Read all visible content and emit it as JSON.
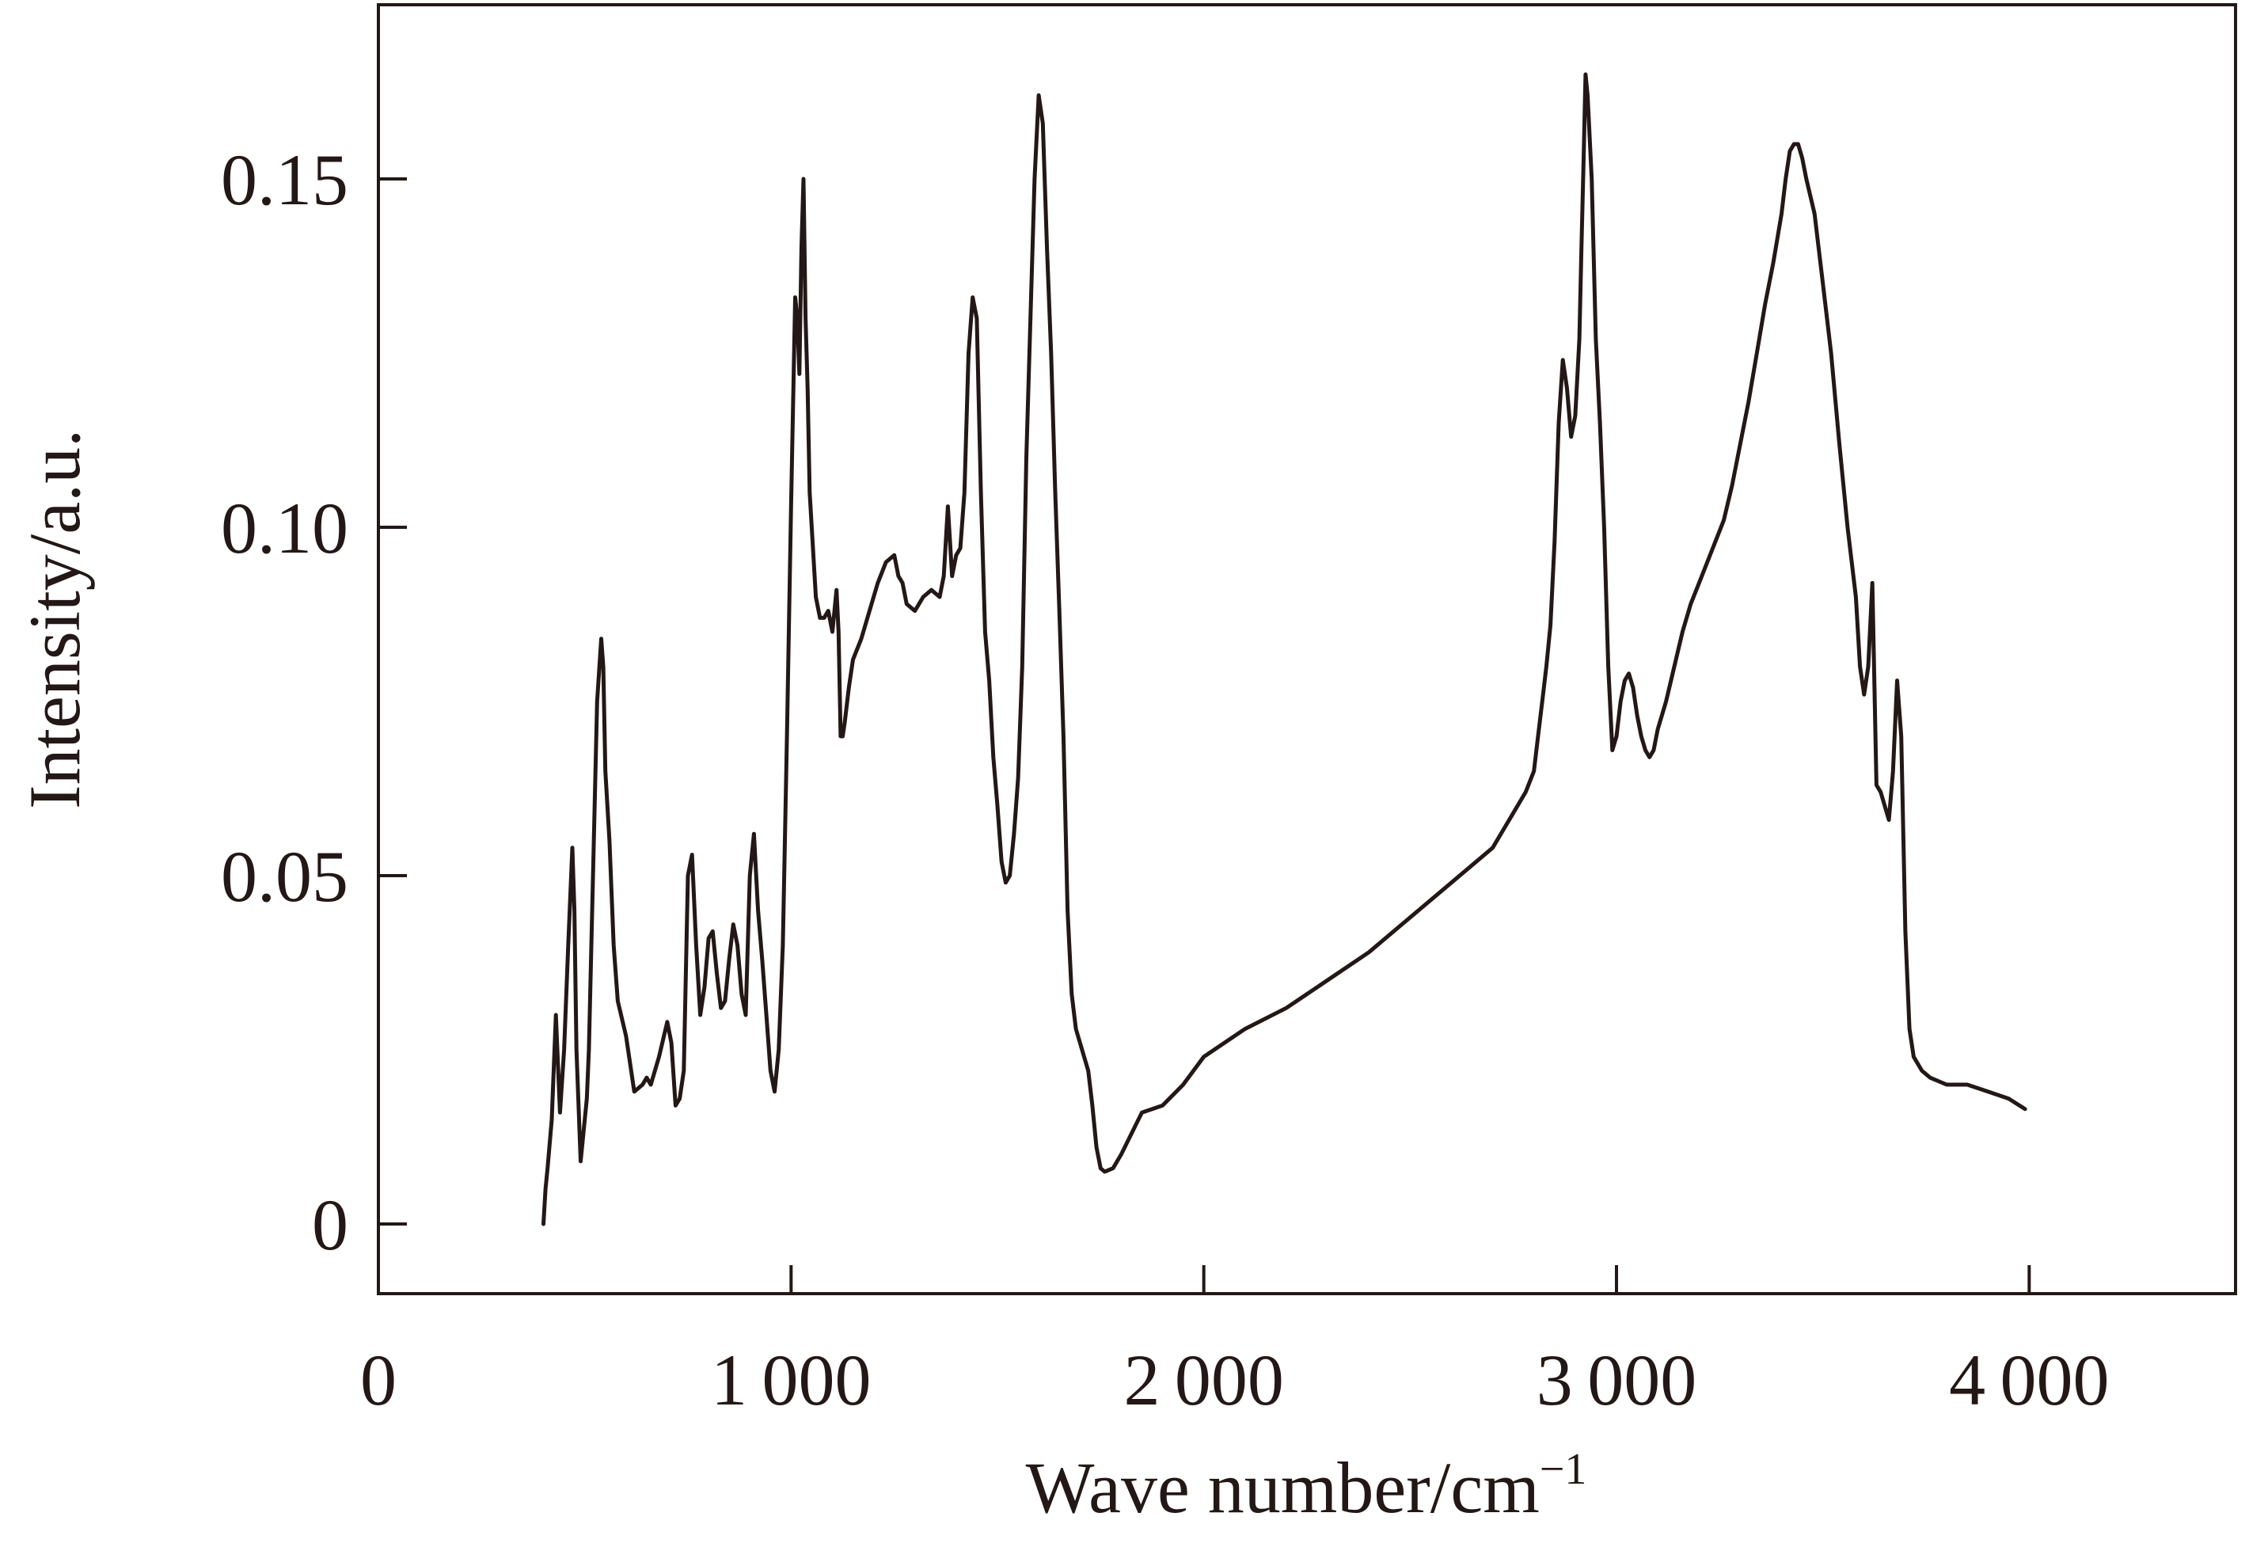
{
  "chart_data": {
    "type": "line",
    "title": "",
    "xlabel": "Wave number/cm",
    "xlabel_superscript": "−1",
    "ylabel": "Intensity/a.u.",
    "xlim": [
      0,
      4500
    ],
    "ylim": [
      -0.01,
      0.175
    ],
    "x_ticks": [
      {
        "value": 0,
        "label": "0"
      },
      {
        "value": 1000,
        "label": "1 000"
      },
      {
        "value": 2000,
        "label": "2 000"
      },
      {
        "value": 3000,
        "label": "3 000"
      },
      {
        "value": 4000,
        "label": "4 000"
      }
    ],
    "y_ticks": [
      {
        "value": 0,
        "label": "0"
      },
      {
        "value": 0.05,
        "label": "0.05"
      },
      {
        "value": 0.1,
        "label": "0.10"
      },
      {
        "value": 0.15,
        "label": "0.15"
      }
    ],
    "grid": false,
    "legend": "none",
    "line_color": "#231815",
    "series": [
      {
        "x": [
          400,
          405,
          410,
          420,
          430,
          440,
          450,
          460,
          470,
          475,
          480,
          490,
          500,
          505,
          510,
          520,
          530,
          540,
          545,
          550,
          560,
          570,
          580,
          600,
          620,
          640,
          650,
          660,
          680,
          700,
          710,
          720,
          730,
          740,
          750,
          760,
          770,
          780,
          790,
          800,
          810,
          820,
          830,
          840,
          850,
          860,
          870,
          880,
          890,
          900,
          910,
          920,
          930,
          940,
          950,
          960,
          970,
          980,
          990,
          1000,
          1010,
          1015,
          1020,
          1025,
          1030,
          1035,
          1040,
          1045,
          1050,
          1060,
          1070,
          1080,
          1090,
          1100,
          1110,
          1115,
          1120,
          1125,
          1130,
          1140,
          1150,
          1170,
          1190,
          1210,
          1230,
          1250,
          1260,
          1270,
          1280,
          1300,
          1320,
          1340,
          1360,
          1370,
          1380,
          1390,
          1400,
          1410,
          1420,
          1430,
          1440,
          1450,
          1460,
          1470,
          1480,
          1490,
          1500,
          1510,
          1520,
          1530,
          1540,
          1550,
          1560,
          1570,
          1580,
          1590,
          1600,
          1610,
          1620,
          1630,
          1640,
          1650,
          1660,
          1670,
          1680,
          1690,
          1700,
          1710,
          1720,
          1730,
          1740,
          1750,
          1760,
          1780,
          1800,
          1850,
          1900,
          1950,
          2000,
          2100,
          2200,
          2300,
          2400,
          2500,
          2600,
          2700,
          2750,
          2780,
          2800,
          2810,
          2820,
          2830,
          2840,
          2850,
          2860,
          2870,
          2880,
          2890,
          2900,
          2910,
          2915,
          2920,
          2925,
          2930,
          2940,
          2950,
          2960,
          2970,
          2980,
          2990,
          3000,
          3010,
          3020,
          3030,
          3040,
          3050,
          3060,
          3070,
          3080,
          3090,
          3100,
          3120,
          3140,
          3160,
          3180,
          3200,
          3220,
          3240,
          3260,
          3280,
          3300,
          3320,
          3340,
          3360,
          3380,
          3400,
          3410,
          3420,
          3430,
          3440,
          3450,
          3460,
          3480,
          3500,
          3520,
          3540,
          3560,
          3580,
          3590,
          3600,
          3610,
          3620,
          3630,
          3640,
          3650,
          3660,
          3670,
          3680,
          3690,
          3700,
          3710,
          3720,
          3740,
          3760,
          3800,
          3850,
          3900,
          3950,
          3990
        ],
        "y": [
          0.0,
          0.005,
          0.008,
          0.015,
          0.03,
          0.016,
          0.025,
          0.04,
          0.054,
          0.045,
          0.025,
          0.009,
          0.015,
          0.018,
          0.025,
          0.05,
          0.075,
          0.084,
          0.08,
          0.065,
          0.055,
          0.04,
          0.032,
          0.027,
          0.019,
          0.02,
          0.021,
          0.02,
          0.024,
          0.029,
          0.026,
          0.017,
          0.018,
          0.022,
          0.05,
          0.053,
          0.04,
          0.03,
          0.034,
          0.041,
          0.042,
          0.036,
          0.031,
          0.032,
          0.038,
          0.043,
          0.04,
          0.033,
          0.03,
          0.05,
          0.056,
          0.045,
          0.038,
          0.03,
          0.022,
          0.019,
          0.025,
          0.04,
          0.07,
          0.103,
          0.133,
          0.13,
          0.122,
          0.14,
          0.15,
          0.13,
          0.12,
          0.105,
          0.1,
          0.09,
          0.087,
          0.087,
          0.088,
          0.085,
          0.091,
          0.085,
          0.07,
          0.07,
          0.072,
          0.077,
          0.081,
          0.084,
          0.088,
          0.092,
          0.095,
          0.096,
          0.093,
          0.092,
          0.089,
          0.088,
          0.09,
          0.091,
          0.09,
          0.093,
          0.103,
          0.093,
          0.096,
          0.097,
          0.105,
          0.125,
          0.133,
          0.13,
          0.105,
          0.085,
          0.078,
          0.067,
          0.06,
          0.052,
          0.049,
          0.05,
          0.056,
          0.064,
          0.08,
          0.11,
          0.13,
          0.15,
          0.162,
          0.158,
          0.14,
          0.125,
          0.105,
          0.088,
          0.07,
          0.045,
          0.033,
          0.028,
          0.026,
          0.024,
          0.022,
          0.017,
          0.011,
          0.008,
          0.0075,
          0.008,
          0.01,
          0.016,
          0.017,
          0.02,
          0.024,
          0.028,
          0.031,
          0.035,
          0.039,
          0.044,
          0.049,
          0.054,
          0.059,
          0.062,
          0.065,
          0.07,
          0.075,
          0.08,
          0.086,
          0.098,
          0.115,
          0.124,
          0.12,
          0.113,
          0.116,
          0.127,
          0.14,
          0.152,
          0.165,
          0.162,
          0.15,
          0.127,
          0.115,
          0.1,
          0.08,
          0.068,
          0.07,
          0.075,
          0.078,
          0.079,
          0.077,
          0.073,
          0.07,
          0.068,
          0.067,
          0.068,
          0.071,
          0.075,
          0.08,
          0.085,
          0.089,
          0.092,
          0.095,
          0.098,
          0.101,
          0.106,
          0.112,
          0.118,
          0.125,
          0.132,
          0.138,
          0.145,
          0.15,
          0.154,
          0.155,
          0.155,
          0.153,
          0.15,
          0.145,
          0.135,
          0.125,
          0.112,
          0.1,
          0.09,
          0.08,
          0.076,
          0.08,
          0.092,
          0.063,
          0.062,
          0.06,
          0.058,
          0.065,
          0.078,
          0.07,
          0.042,
          0.028,
          0.024,
          0.022,
          0.021,
          0.02,
          0.02,
          0.019,
          0.018,
          0.0165
        ]
      }
    ]
  }
}
